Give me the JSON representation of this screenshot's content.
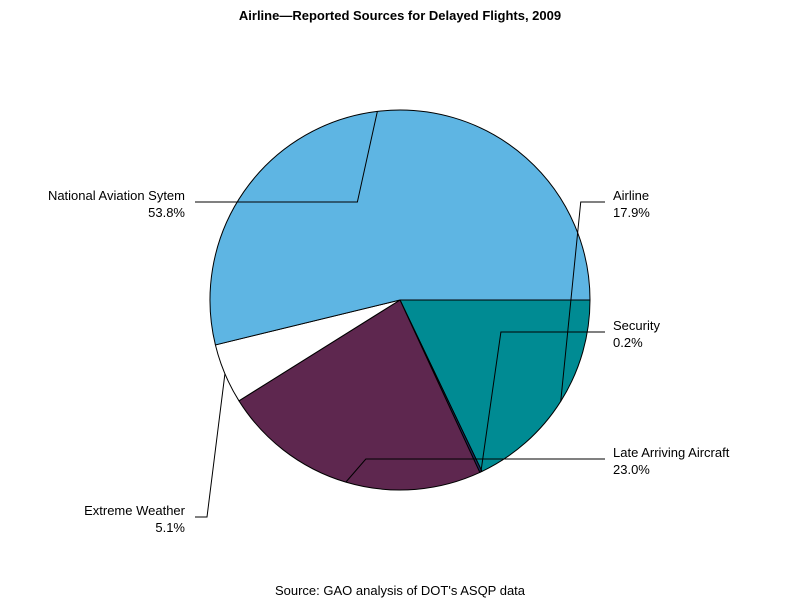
{
  "chart_data": {
    "type": "pie",
    "title": "Airline—Reported Sources for Delayed Flights, 2009",
    "footnote": "Source: GAO analysis of DOT's ASQP data",
    "slices": [
      {
        "label": "Airline",
        "value": 17.9,
        "value_label": "17.9%",
        "color": "#008b93"
      },
      {
        "label": "Security",
        "value": 0.2,
        "value_label": "0.2%",
        "color": "#1a2a5a"
      },
      {
        "label": "Late Arriving Aircraft",
        "value": 23.0,
        "value_label": "23.0%",
        "color": "#5e274f"
      },
      {
        "label": "Extreme Weather",
        "value": 5.1,
        "value_label": "5.1%",
        "color": "#ffffff"
      },
      {
        "label": "National Aviation Sytem",
        "value": 53.8,
        "value_label": "53.8%",
        "color": "#5eb5e3"
      }
    ]
  }
}
